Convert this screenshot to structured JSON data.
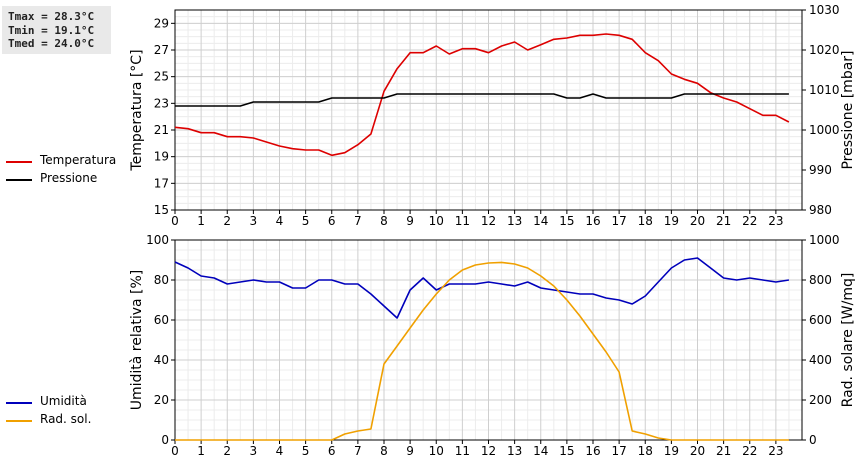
{
  "stats": {
    "tmax": "Tmax = 28.3°C",
    "tmin": "Tmin = 19.1°C",
    "tmed": "Tmed = 24.0°C"
  },
  "colors": {
    "temperature": "#dd0000",
    "pressure": "#000000",
    "humidity": "#0000bb",
    "radiation": "#f0a000"
  },
  "chart_data": [
    {
      "type": "line",
      "xlim": [
        0,
        24
      ],
      "xticks": [
        0,
        1,
        2,
        3,
        4,
        5,
        6,
        7,
        8,
        9,
        10,
        11,
        12,
        13,
        14,
        15,
        16,
        17,
        18,
        19,
        20,
        21,
        22,
        23
      ],
      "ylabel": "Temperatura [°C]",
      "ylim": [
        15,
        30
      ],
      "yticks": [
        15,
        17,
        19,
        21,
        23,
        25,
        27,
        29
      ],
      "y2label": "Pressione [mbar]",
      "y2lim": [
        980,
        1030
      ],
      "y2ticks": [
        980,
        990,
        1000,
        1010,
        1020,
        1030
      ],
      "grid": true,
      "legend": [
        {
          "name": "Temperatura",
          "color": "#dd0000"
        },
        {
          "name": "Pressione",
          "color": "#000000"
        }
      ],
      "series": [
        {
          "name": "Temperatura",
          "axis": "left",
          "x": [
            0,
            0.5,
            1,
            1.5,
            2,
            2.5,
            3,
            3.5,
            4,
            4.5,
            5,
            5.5,
            6,
            6.5,
            7,
            7.5,
            8,
            8.5,
            9,
            9.5,
            10,
            10.5,
            11,
            11.5,
            12,
            12.5,
            13,
            13.5,
            14,
            14.5,
            15,
            15.5,
            16,
            16.5,
            17,
            17.5,
            18,
            18.5,
            19,
            19.5,
            20,
            20.5,
            21,
            21.5,
            22,
            22.5,
            23,
            23.5
          ],
          "values": [
            21.2,
            21.1,
            20.8,
            20.8,
            20.5,
            20.5,
            20.4,
            20.1,
            19.8,
            19.6,
            19.5,
            19.5,
            19.1,
            19.3,
            19.9,
            20.7,
            23.9,
            25.6,
            26.8,
            26.8,
            27.3,
            26.7,
            27.1,
            27.1,
            26.8,
            27.3,
            27.6,
            27.0,
            27.4,
            27.8,
            27.9,
            28.1,
            28.1,
            28.2,
            28.1,
            27.8,
            26.8,
            26.2,
            25.2,
            24.8,
            24.5,
            23.8,
            23.4,
            23.1,
            22.6,
            22.1,
            22.1,
            21.6
          ]
        },
        {
          "name": "Pressione",
          "axis": "right",
          "x": [
            0,
            0.5,
            1,
            1.5,
            2,
            2.5,
            3,
            3.5,
            4,
            4.5,
            5,
            5.5,
            6,
            6.5,
            7,
            7.5,
            8,
            8.5,
            9,
            9.5,
            10,
            10.5,
            11,
            11.5,
            12,
            12.5,
            13,
            13.5,
            14,
            14.5,
            15,
            15.5,
            16,
            16.5,
            17,
            17.5,
            18,
            18.5,
            19,
            19.5,
            20,
            20.5,
            21,
            21.5,
            22,
            22.5,
            23,
            23.5
          ],
          "values": [
            1006,
            1006,
            1006,
            1006,
            1006,
            1006,
            1007,
            1007,
            1007,
            1007,
            1007,
            1007,
            1008,
            1008,
            1008,
            1008,
            1008,
            1009,
            1009,
            1009,
            1009,
            1009,
            1009,
            1009,
            1009,
            1009,
            1009,
            1009,
            1009,
            1009,
            1008,
            1008,
            1009,
            1008,
            1008,
            1008,
            1008,
            1008,
            1008,
            1009,
            1009,
            1009,
            1009,
            1009,
            1009,
            1009,
            1009,
            1009
          ]
        }
      ]
    },
    {
      "type": "line",
      "xlim": [
        0,
        24
      ],
      "xticks": [
        0,
        1,
        2,
        3,
        4,
        5,
        6,
        7,
        8,
        9,
        10,
        11,
        12,
        13,
        14,
        15,
        16,
        17,
        18,
        19,
        20,
        21,
        22,
        23
      ],
      "ylabel": "Umidità relativa [%]",
      "ylim": [
        0,
        100
      ],
      "yticks": [
        0,
        20,
        40,
        60,
        80,
        100
      ],
      "y2label": "Rad. solare [W/mq]",
      "y2lim": [
        0,
        1000
      ],
      "y2ticks": [
        0,
        200,
        400,
        600,
        800,
        1000
      ],
      "grid": true,
      "legend": [
        {
          "name": "Umidità",
          "color": "#0000bb"
        },
        {
          "name": "Rad. sol.",
          "color": "#f0a000"
        }
      ],
      "series": [
        {
          "name": "Umidità",
          "axis": "left",
          "x": [
            0,
            0.5,
            1,
            1.5,
            2,
            2.5,
            3,
            3.5,
            4,
            4.5,
            5,
            5.5,
            6,
            6.5,
            7,
            7.5,
            8,
            8.5,
            9,
            9.5,
            10,
            10.5,
            11,
            11.5,
            12,
            12.5,
            13,
            13.5,
            14,
            14.5,
            15,
            15.5,
            16,
            16.5,
            17,
            17.5,
            18,
            18.5,
            19,
            19.5,
            20,
            20.5,
            21,
            21.5,
            22,
            22.5,
            23,
            23.5
          ],
          "values": [
            89,
            86,
            82,
            81,
            78,
            79,
            80,
            79,
            79,
            76,
            76,
            80,
            80,
            78,
            78,
            73,
            67,
            61,
            75,
            81,
            75,
            78,
            78,
            78,
            79,
            78,
            77,
            79,
            76,
            75,
            74,
            73,
            73,
            71,
            70,
            68,
            72,
            79,
            86,
            90,
            91,
            86,
            81,
            80,
            81,
            80,
            79,
            80
          ]
        },
        {
          "name": "Rad. sol.",
          "axis": "right",
          "x": [
            0,
            0.5,
            1,
            1.5,
            2,
            2.5,
            3,
            3.5,
            4,
            4.5,
            5,
            5.5,
            6,
            6.5,
            7,
            7.5,
            8,
            8.5,
            9,
            9.5,
            10,
            10.5,
            11,
            11.5,
            12,
            12.5,
            13,
            13.5,
            14,
            14.5,
            15,
            15.5,
            16,
            16.5,
            17,
            17.5,
            18,
            18.5,
            19,
            19.5,
            20,
            20.5,
            21,
            21.5,
            22,
            22.5,
            23,
            23.5
          ],
          "values": [
            0,
            0,
            0,
            0,
            0,
            0,
            0,
            0,
            0,
            0,
            0,
            0,
            0,
            30,
            45,
            55,
            380,
            470,
            560,
            650,
            730,
            800,
            850,
            875,
            885,
            888,
            880,
            860,
            820,
            770,
            700,
            620,
            530,
            440,
            340,
            45,
            30,
            10,
            0,
            0,
            0,
            0,
            0,
            0,
            0,
            0,
            0,
            0
          ]
        }
      ]
    }
  ]
}
